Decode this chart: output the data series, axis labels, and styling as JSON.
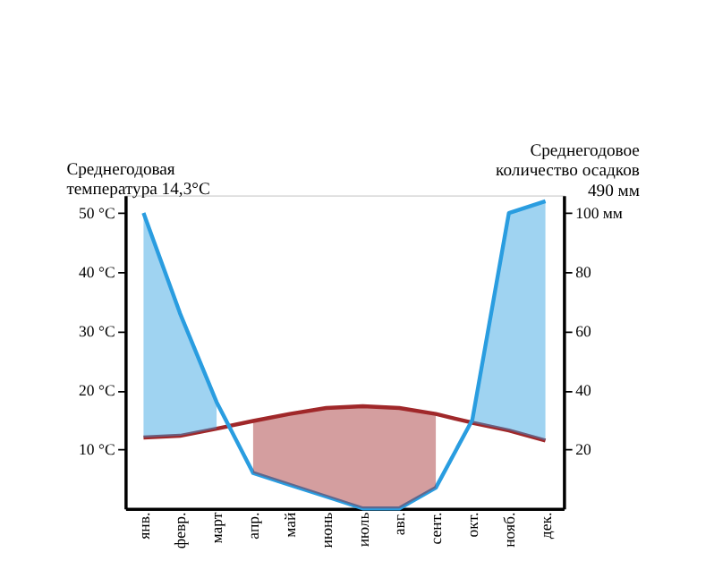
{
  "chart_data": {
    "type": "line",
    "ylabel": "Среднегодовая\nтемпература 14,3°С",
    "y2label": "Среднегодовое\nколичество осадков\n490 мм",
    "categories": [
      "янв.",
      "февр.",
      "март",
      "апр.",
      "май",
      "июнь",
      "июль",
      "авг.",
      "сент.",
      "окт.",
      "нояб.",
      "дек."
    ],
    "series": [
      {
        "name": null,
        "color": "#a0282a",
        "values": [
          12,
          12.3,
          13.5,
          14.8,
          16,
          17,
          17.3,
          17,
          16,
          14.5,
          13.2,
          11.5
        ],
        "lower": [
          null,
          null,
          null,
          6,
          4,
          2,
          0,
          0,
          3.5,
          null,
          null,
          null
        ],
        "upper": [
          null,
          null,
          null,
          14.8,
          16,
          17,
          17.3,
          17,
          16,
          null,
          null,
          null
        ]
      },
      {
        "name": null,
        "color": "#2a9de0",
        "axis": "y2",
        "values": [
          100,
          66,
          36,
          12,
          8,
          4,
          0,
          0,
          7,
          30,
          100,
          104
        ],
        "lower": [
          24,
          24.6,
          27,
          null,
          null,
          null,
          null,
          null,
          null,
          29,
          26.4,
          23
        ],
        "upper": [
          100,
          66,
          36,
          null,
          null,
          null,
          null,
          null,
          null,
          30,
          100,
          104
        ]
      }
    ],
    "ylim": [
      0,
      53
    ],
    "yticks": [
      {
        "value": 10,
        "label": "10 °C"
      },
      {
        "value": 20,
        "label": "20 °C"
      },
      {
        "value": 30,
        "label": "30 °C"
      },
      {
        "value": 40,
        "label": "40 °C"
      },
      {
        "value": 50,
        "label": "50 °C"
      }
    ],
    "y2lim": [
      0,
      106
    ],
    "y2ticks": [
      20,
      40,
      60,
      80,
      {
        "value": 100,
        "label": "100 мм"
      }
    ],
    "grid": false
  }
}
